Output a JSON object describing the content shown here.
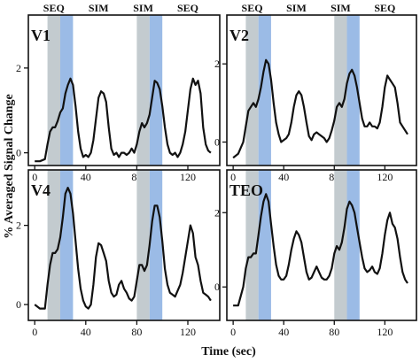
{
  "figure": {
    "ylabel": "% Averaged Signal Change",
    "xlabel": "Time (sec)"
  },
  "chart_data": [
    {
      "type": "line",
      "panel": "V1",
      "block_labels": [
        "SEQ",
        "SIM",
        "SIM",
        "SEQ"
      ],
      "xticks": [
        "0",
        "40",
        "80",
        "120"
      ],
      "yticks": [
        "0",
        "2"
      ],
      "xlim": [
        -5,
        145
      ],
      "ylim": [
        -0.3,
        3.25
      ],
      "shading": [
        {
          "start": 10,
          "end": 20,
          "color": "#c3cbcf"
        },
        {
          "start": 20,
          "end": 30,
          "color": "#9bbbe6"
        },
        {
          "start": 80,
          "end": 90,
          "color": "#c3cbcf"
        },
        {
          "start": 90,
          "end": 100,
          "color": "#9bbbe6"
        }
      ],
      "series": [
        {
          "x": [
            0,
            4,
            8,
            10,
            12,
            14,
            16,
            18,
            20,
            22,
            24,
            26,
            28,
            30,
            32,
            34,
            36,
            38,
            40,
            42,
            44,
            46,
            48,
            50,
            52,
            54,
            56,
            58,
            60,
            62,
            64,
            66,
            68,
            70,
            72,
            74,
            76,
            78,
            80,
            82,
            84,
            86,
            88,
            90,
            92,
            94,
            96,
            98,
            100,
            102,
            104,
            106,
            108,
            110,
            112,
            114,
            116,
            118,
            120,
            122,
            124,
            126,
            128,
            130,
            132,
            134,
            136,
            138
          ],
          "y": [
            -0.2,
            -0.2,
            -0.15,
            0.2,
            0.5,
            0.6,
            0.6,
            0.75,
            0.95,
            1.05,
            1.4,
            1.6,
            1.75,
            1.6,
            1.1,
            0.5,
            0.1,
            -0.1,
            -0.05,
            -0.1,
            0.0,
            0.3,
            0.8,
            1.3,
            1.45,
            1.4,
            1.2,
            0.6,
            0.1,
            -0.05,
            0.0,
            -0.1,
            0.0,
            0.0,
            -0.05,
            0.0,
            0.1,
            0.0,
            0.2,
            0.5,
            0.7,
            0.6,
            0.7,
            0.9,
            1.3,
            1.7,
            1.65,
            1.5,
            1.1,
            0.6,
            0.2,
            0.0,
            -0.05,
            0.0,
            -0.1,
            0.0,
            0.2,
            0.5,
            1.0,
            1.5,
            1.75,
            1.6,
            1.7,
            1.4,
            0.6,
            0.2,
            0.05,
            0.0
          ]
        }
      ]
    },
    {
      "type": "line",
      "panel": "V2",
      "block_labels": [
        "SEQ",
        "SIM",
        "SIM",
        "SEQ"
      ],
      "xticks": [
        "0",
        "40",
        "80",
        "120"
      ],
      "yticks": [
        "0",
        "2"
      ],
      "xlim": [
        -5,
        145
      ],
      "ylim": [
        -0.6,
        3.25
      ],
      "shading": [
        {
          "start": 10,
          "end": 20,
          "color": "#c3cbcf"
        },
        {
          "start": 20,
          "end": 30,
          "color": "#9bbbe6"
        },
        {
          "start": 80,
          "end": 90,
          "color": "#c3cbcf"
        },
        {
          "start": 90,
          "end": 100,
          "color": "#9bbbe6"
        }
      ],
      "series": [
        {
          "x": [
            0,
            4,
            8,
            10,
            12,
            14,
            16,
            18,
            20,
            22,
            24,
            26,
            28,
            30,
            32,
            34,
            36,
            38,
            40,
            42,
            44,
            46,
            48,
            50,
            52,
            54,
            56,
            58,
            60,
            62,
            64,
            66,
            68,
            70,
            72,
            74,
            76,
            78,
            80,
            82,
            84,
            86,
            88,
            90,
            92,
            94,
            96,
            98,
            100,
            102,
            104,
            106,
            108,
            110,
            112,
            114,
            116,
            118,
            120,
            122,
            124,
            126,
            128,
            130,
            132,
            134,
            136,
            138
          ],
          "y": [
            -0.4,
            -0.3,
            0.0,
            0.4,
            0.8,
            0.9,
            1.0,
            0.9,
            1.1,
            1.4,
            1.8,
            2.1,
            2.0,
            1.6,
            1.0,
            0.5,
            0.2,
            0.0,
            0.05,
            0.1,
            0.2,
            0.5,
            0.9,
            1.2,
            1.3,
            1.2,
            0.9,
            0.5,
            0.15,
            0.05,
            0.2,
            0.25,
            0.2,
            0.15,
            0.1,
            0.0,
            0.1,
            0.3,
            0.55,
            0.9,
            1.0,
            0.9,
            1.1,
            1.5,
            1.75,
            1.85,
            1.7,
            1.4,
            1.0,
            0.6,
            0.4,
            0.4,
            0.5,
            0.4,
            0.4,
            0.35,
            0.5,
            0.9,
            1.4,
            1.7,
            1.6,
            1.5,
            1.4,
            1.0,
            0.5,
            0.4,
            0.3,
            0.2
          ]
        }
      ]
    },
    {
      "type": "line",
      "panel": "V4",
      "xticks": [
        "0",
        "40",
        "80",
        "120"
      ],
      "yticks": [
        "0",
        "2"
      ],
      "xlim": [
        -5,
        145
      ],
      "ylim": [
        -0.4,
        3.4
      ],
      "shading": [
        {
          "start": 10,
          "end": 20,
          "color": "#c3cbcf"
        },
        {
          "start": 20,
          "end": 30,
          "color": "#9bbbe6"
        },
        {
          "start": 80,
          "end": 90,
          "color": "#c3cbcf"
        },
        {
          "start": 90,
          "end": 100,
          "color": "#9bbbe6"
        }
      ],
      "series": [
        {
          "x": [
            0,
            4,
            8,
            10,
            12,
            14,
            16,
            18,
            20,
            22,
            24,
            26,
            28,
            30,
            32,
            34,
            36,
            38,
            40,
            42,
            44,
            46,
            48,
            50,
            52,
            54,
            56,
            58,
            60,
            62,
            64,
            66,
            68,
            70,
            72,
            74,
            76,
            78,
            80,
            82,
            84,
            86,
            88,
            90,
            92,
            94,
            96,
            98,
            100,
            102,
            104,
            106,
            108,
            110,
            112,
            114,
            116,
            118,
            120,
            122,
            124,
            126,
            128,
            130,
            132,
            134,
            136,
            138
          ],
          "y": [
            0.0,
            -0.1,
            -0.1,
            0.5,
            1.0,
            1.3,
            1.3,
            1.4,
            1.7,
            2.2,
            2.8,
            2.95,
            2.8,
            2.3,
            1.6,
            0.9,
            0.4,
            0.1,
            -0.05,
            -0.1,
            0.0,
            0.5,
            1.2,
            1.55,
            1.5,
            1.3,
            1.1,
            0.6,
            0.3,
            0.2,
            0.25,
            0.5,
            0.6,
            0.4,
            0.3,
            0.15,
            0.1,
            0.2,
            0.6,
            1.0,
            1.0,
            0.85,
            1.0,
            1.5,
            2.1,
            2.5,
            2.5,
            2.2,
            1.6,
            0.9,
            0.5,
            0.3,
            0.25,
            0.2,
            0.35,
            0.5,
            0.8,
            1.2,
            1.6,
            2.0,
            1.8,
            1.2,
            1.0,
            0.6,
            0.3,
            0.25,
            0.2,
            0.1
          ]
        }
      ]
    },
    {
      "type": "line",
      "panel": "TEO",
      "xticks": [
        "0",
        "40",
        "80",
        "120"
      ],
      "yticks": [
        "0",
        "2"
      ],
      "xlim": [
        -5,
        145
      ],
      "ylim": [
        -0.9,
        3.15
      ],
      "shading": [
        {
          "start": 10,
          "end": 20,
          "color": "#c3cbcf"
        },
        {
          "start": 20,
          "end": 30,
          "color": "#9bbbe6"
        },
        {
          "start": 80,
          "end": 90,
          "color": "#c3cbcf"
        },
        {
          "start": 90,
          "end": 100,
          "color": "#9bbbe6"
        }
      ],
      "series": [
        {
          "x": [
            0,
            4,
            8,
            10,
            12,
            14,
            16,
            18,
            20,
            22,
            24,
            26,
            28,
            30,
            32,
            34,
            36,
            38,
            40,
            42,
            44,
            46,
            48,
            50,
            52,
            54,
            56,
            58,
            60,
            62,
            64,
            66,
            68,
            70,
            72,
            74,
            76,
            78,
            80,
            82,
            84,
            86,
            88,
            90,
            92,
            94,
            96,
            98,
            100,
            102,
            104,
            106,
            108,
            110,
            112,
            114,
            116,
            118,
            120,
            122,
            124,
            126,
            128,
            130,
            132,
            134,
            136,
            138
          ],
          "y": [
            -0.5,
            -0.5,
            0.0,
            0.5,
            0.8,
            0.8,
            0.9,
            0.9,
            1.4,
            1.9,
            2.3,
            2.5,
            2.3,
            1.7,
            1.1,
            0.6,
            0.3,
            0.2,
            0.2,
            0.3,
            0.6,
            1.0,
            1.3,
            1.5,
            1.4,
            1.2,
            0.8,
            0.4,
            0.2,
            0.25,
            0.4,
            0.55,
            0.4,
            0.25,
            0.2,
            0.2,
            0.3,
            0.5,
            0.9,
            1.1,
            1.0,
            1.2,
            1.6,
            2.1,
            2.3,
            2.2,
            2.0,
            1.6,
            1.2,
            0.8,
            0.5,
            0.4,
            0.45,
            0.55,
            0.4,
            0.35,
            0.5,
            0.9,
            1.4,
            1.8,
            2.0,
            1.7,
            1.6,
            1.3,
            0.8,
            0.4,
            0.2,
            0.1
          ]
        }
      ]
    }
  ]
}
